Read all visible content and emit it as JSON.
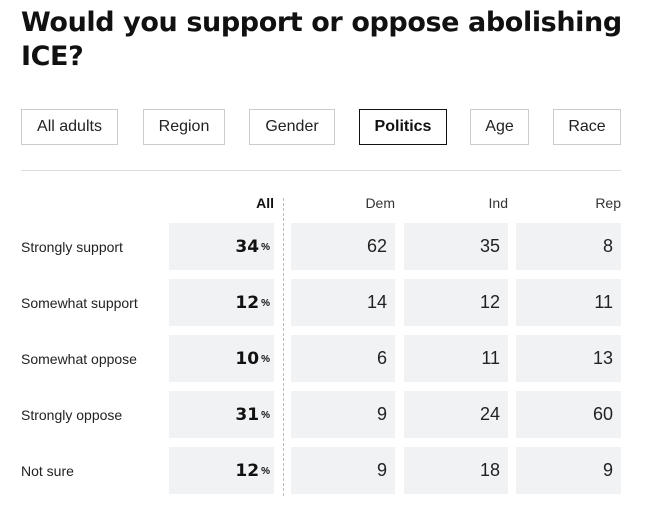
{
  "title": "Would you support or oppose abolishing ICE?",
  "tabs": [
    {
      "label": "All adults",
      "active": false
    },
    {
      "label": "Region",
      "active": false
    },
    {
      "label": "Gender",
      "active": false
    },
    {
      "label": "Politics",
      "active": true
    },
    {
      "label": "Age",
      "active": false
    },
    {
      "label": "Race",
      "active": false
    }
  ],
  "columns": {
    "all": "All",
    "dem": "Dem",
    "ind": "Ind",
    "rep": "Rep"
  },
  "percent_symbol": "%",
  "rows": [
    {
      "label": "Strongly support",
      "all": "34",
      "dem": "62",
      "ind": "35",
      "rep": "8"
    },
    {
      "label": "Somewhat support",
      "all": "12",
      "dem": "14",
      "ind": "12",
      "rep": "11"
    },
    {
      "label": "Somewhat oppose",
      "all": "10",
      "dem": "6",
      "ind": "11",
      "rep": "13"
    },
    {
      "label": "Strongly oppose",
      "all": "31",
      "dem": "9",
      "ind": "24",
      "rep": "60"
    },
    {
      "label": "Not sure",
      "all": "12",
      "dem": "9",
      "ind": "18",
      "rep": "9"
    }
  ],
  "colors": {
    "cell_bg": "#f1f2f4",
    "border": "#cccccc",
    "active_border": "#111111",
    "text": "#111111"
  }
}
